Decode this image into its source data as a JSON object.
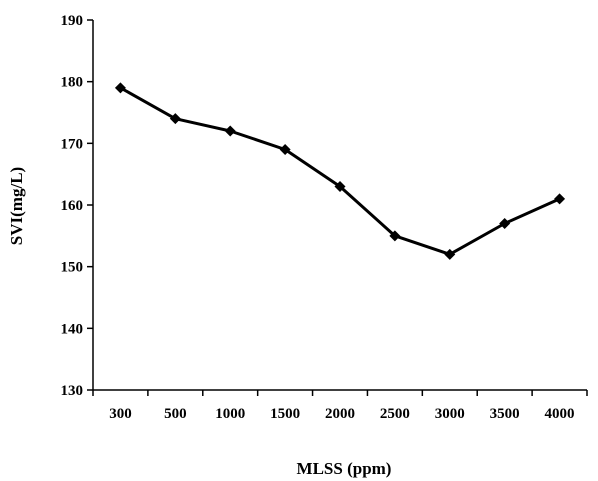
{
  "chart_data": {
    "type": "line",
    "title": "",
    "xlabel": "MLSS (ppm)",
    "ylabel": "SVI(mg/L)",
    "categories": [
      "300",
      "500",
      "1000",
      "1500",
      "2000",
      "2500",
      "3000",
      "3500",
      "4000"
    ],
    "series": [
      {
        "values": [
          179,
          174,
          172,
          169,
          163,
          155,
          152,
          157,
          161
        ]
      }
    ],
    "ylim": [
      130,
      190
    ],
    "yticks": [
      "130",
      "140",
      "150",
      "160",
      "170",
      "180",
      "190"
    ],
    "grid": false,
    "legend": "none",
    "line_color": "#000000",
    "marker": "diamond"
  }
}
